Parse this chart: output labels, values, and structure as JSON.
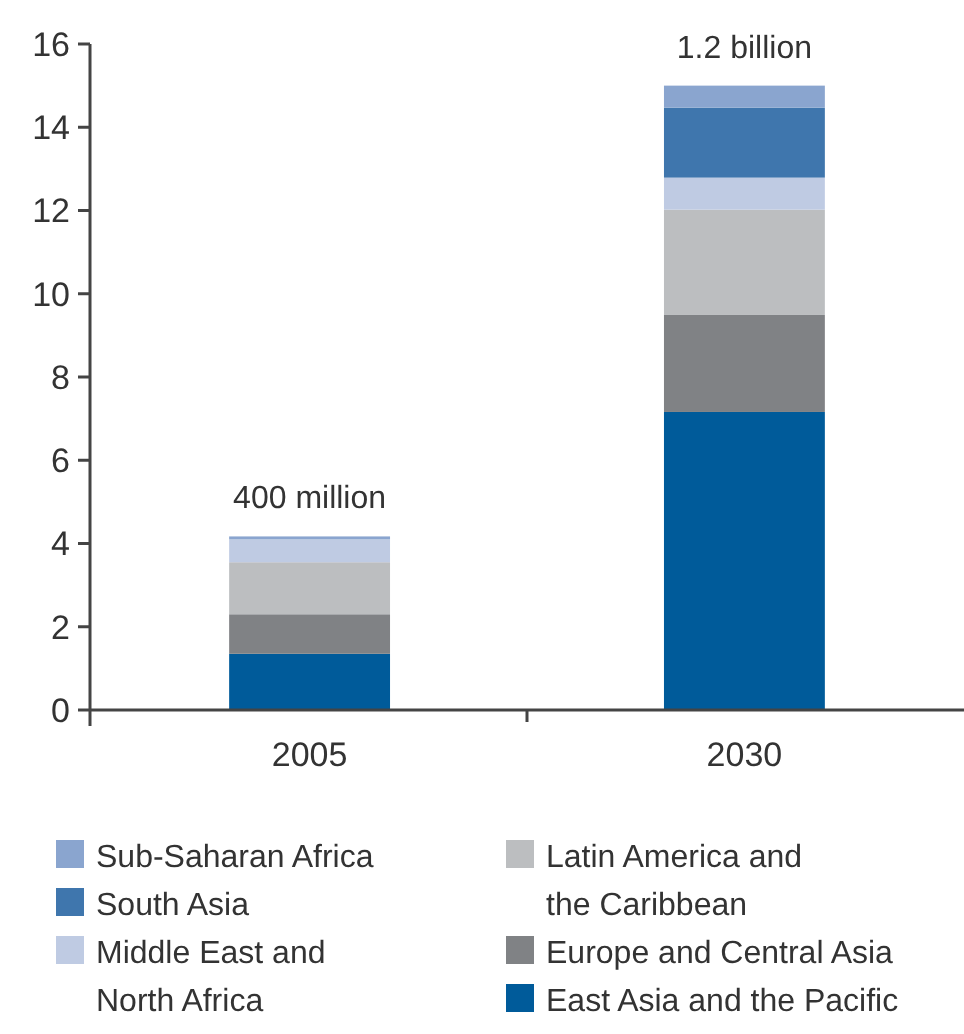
{
  "chart_data": {
    "type": "bar",
    "stacked": true,
    "categories": [
      "2005",
      "2030"
    ],
    "series": [
      {
        "name": "East Asia and the Pacific",
        "color": "#005b9a",
        "values": [
          1.35,
          7.16
        ]
      },
      {
        "name": "Europe and Central Asia",
        "color": "#808285",
        "values": [
          0.95,
          2.33
        ]
      },
      {
        "name": "Latin America and the Caribbean",
        "color": "#bcbec0",
        "values": [
          1.25,
          2.53
        ]
      },
      {
        "name": "Middle East and North Africa",
        "color": "#bfcbe3",
        "values": [
          0.55,
          0.77
        ]
      },
      {
        "name": "South Asia",
        "color": "#3f76ad",
        "values": [
          0,
          1.68
        ]
      },
      {
        "name": "Sub-Saharan Africa",
        "color": "#8aa5cf",
        "values": [
          0.07,
          0.53
        ]
      }
    ],
    "ylim": [
      0,
      16
    ],
    "yticks": [
      0,
      2,
      4,
      6,
      8,
      10,
      12,
      14,
      16
    ],
    "annotations": [
      {
        "text": "400 million",
        "x": "2005",
        "y": 4.17
      },
      {
        "text": "1.2 billion",
        "x": "2030",
        "y": 15
      }
    ],
    "legend": "bottom",
    "grid": false
  }
}
